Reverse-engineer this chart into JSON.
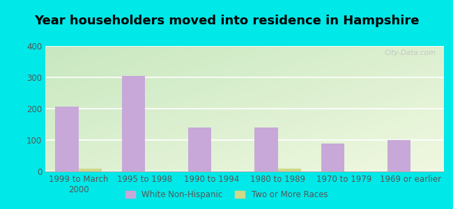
{
  "title": "Year householders moved into residence in Hampshire",
  "categories": [
    "1999 to March\n2000",
    "1995 to 1998",
    "1990 to 1994",
    "1980 to 1989",
    "1970 to 1979",
    "1969 or earlier"
  ],
  "white_non_hispanic": [
    206,
    305,
    140,
    140,
    88,
    99
  ],
  "two_or_more_races": [
    8,
    0,
    0,
    9,
    0,
    0
  ],
  "bar_color_white": "#c8a8d8",
  "bar_color_two": "#d0d888",
  "background_outer": "#00e8e8",
  "grad_top_left": "#c8e8c0",
  "grad_bottom_right": "#f0f8e0",
  "ylim": [
    0,
    400
  ],
  "yticks": [
    0,
    100,
    200,
    300,
    400
  ],
  "watermark": "City-Data.com",
  "legend_white": "White Non-Hispanic",
  "legend_two": "Two or More Races",
  "bar_width": 0.35,
  "title_fontsize": 13,
  "tick_fontsize": 8.5
}
